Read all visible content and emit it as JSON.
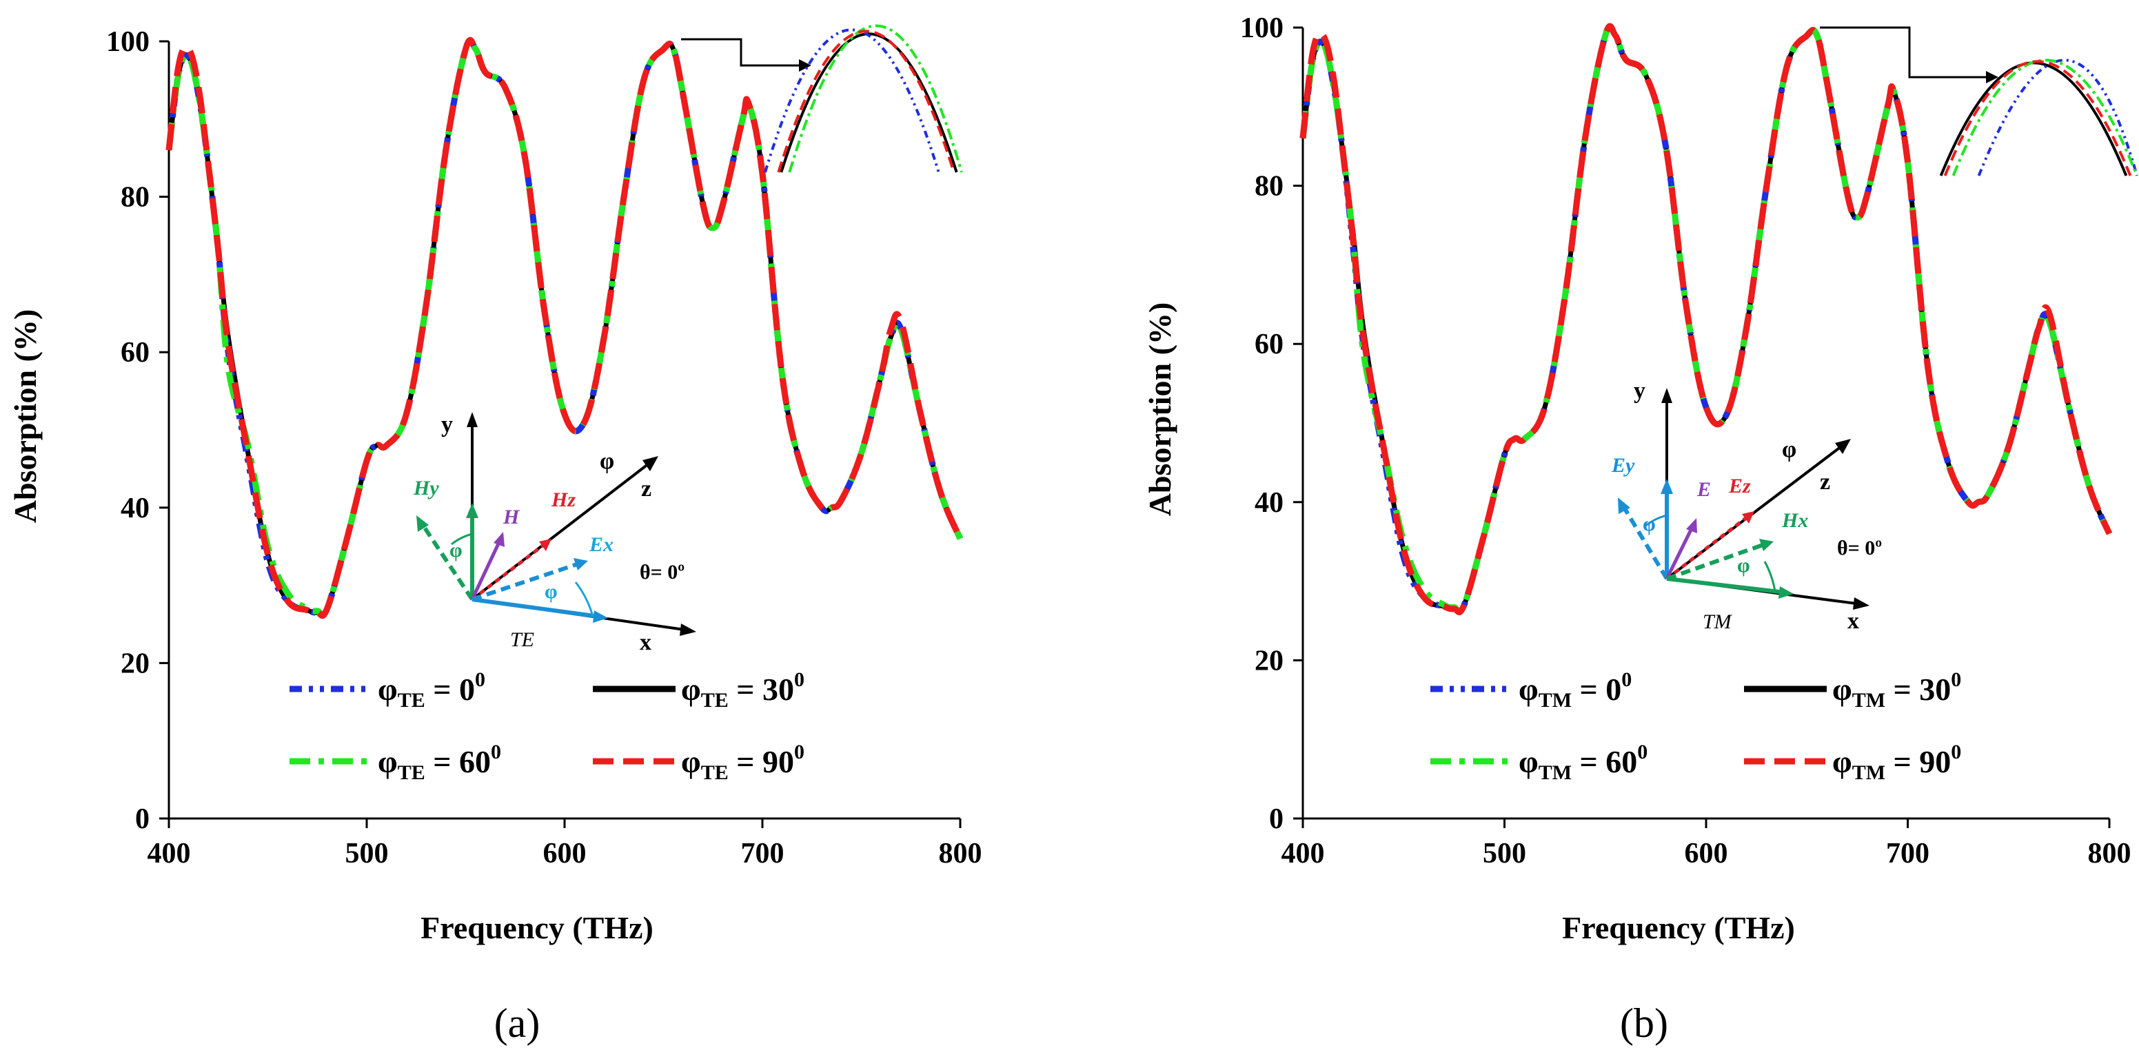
{
  "chart_data": [
    {
      "type": "line",
      "panel_label": "(a)",
      "xlabel": "Frequency (THz)",
      "ylabel": "Absorption (%)",
      "xlim": [
        400,
        800
      ],
      "ylim": [
        0,
        100
      ],
      "xticks": [
        "400",
        "500",
        "600",
        "700",
        "800"
      ],
      "yticks": [
        "0",
        "20",
        "40",
        "60",
        "80",
        "100"
      ],
      "legend": [
        {
          "prefix": "φ",
          "sub": "TE",
          "eq": " = 0",
          "sup": "0",
          "color": "#1f2ee0",
          "dash": "dashdotdot"
        },
        {
          "prefix": "φ",
          "sub": "TE",
          "eq": " = 30",
          "sup": "0",
          "color": "#000000",
          "dash": "solid"
        },
        {
          "prefix": "φ",
          "sub": "TE",
          "eq": " = 60",
          "sup": "0",
          "color": "#22e622",
          "dash": "dashdot"
        },
        {
          "prefix": "φ",
          "sub": "TE",
          "eq": " = 90",
          "sup": "0",
          "color": "#ee1c1c",
          "dash": "dash"
        }
      ],
      "x": [
        400,
        405,
        410,
        415,
        420,
        425,
        430,
        440,
        450,
        460,
        470,
        475,
        480,
        490,
        500,
        505,
        510,
        520,
        530,
        540,
        550,
        555,
        560,
        570,
        580,
        590,
        600,
        610,
        620,
        630,
        640,
        650,
        655,
        660,
        670,
        675,
        680,
        690,
        693,
        700,
        710,
        720,
        730,
        735,
        740,
        750,
        760,
        765,
        770,
        780,
        790,
        800
      ],
      "series": [
        {
          "name": "φTE = 0°",
          "values": [
            86,
            96,
            98,
            93,
            84,
            73,
            60,
            46,
            33,
            28,
            26.8,
            26.5,
            27,
            36,
            46,
            48,
            48,
            52,
            66,
            86,
            99,
            99,
            96,
            94,
            85,
            65,
            52,
            51,
            62,
            80,
            95,
            99,
            99,
            93,
            79,
            76,
            79,
            90,
            92,
            83,
            57,
            45,
            40,
            40,
            41,
            47,
            57,
            62,
            63,
            52,
            42,
            36
          ]
        },
        {
          "name": "φTE = 30°",
          "values": [
            86,
            96,
            98,
            93,
            84,
            73,
            62,
            47,
            34,
            28,
            26.8,
            26.5,
            27,
            36,
            46,
            48,
            48,
            52,
            66,
            86,
            99,
            99,
            96,
            94,
            85,
            65,
            52,
            51,
            62,
            80,
            95,
            99,
            99,
            93,
            79,
            76,
            79,
            90,
            92,
            83,
            57,
            45,
            40,
            40,
            41,
            47,
            57,
            62,
            63,
            52,
            42,
            36
          ]
        },
        {
          "name": "φTE = 60°",
          "values": [
            86,
            96,
            98,
            93,
            84,
            73,
            58,
            48,
            35,
            29,
            27,
            26.7,
            27,
            36,
            46,
            48,
            48,
            52,
            66,
            86,
            99,
            99,
            96,
            94,
            85,
            65,
            52,
            51,
            62,
            80,
            95,
            99,
            99,
            93,
            79,
            76,
            79,
            90,
            92,
            83,
            57,
            45,
            40,
            40,
            41,
            47,
            57,
            62,
            63,
            52,
            42,
            36
          ]
        },
        {
          "name": "φTE = 90°",
          "values": [
            86,
            97,
            99,
            94,
            84,
            73,
            61,
            47,
            34,
            28,
            26.8,
            26.5,
            27,
            36,
            46,
            48,
            48,
            52,
            66,
            86,
            99,
            99,
            96,
            94,
            85,
            65,
            52,
            51,
            62,
            80,
            95,
            99,
            99,
            93,
            79,
            76,
            79,
            90,
            92,
            83,
            57,
            45,
            40,
            40,
            41,
            47,
            57,
            63,
            64,
            52,
            42,
            36
          ]
        }
      ],
      "inset": {
        "y": "y",
        "x": "x",
        "z": "z",
        "phi": "φ",
        "theta": "θ= 0º",
        "mode": "TE",
        "field_h": "Hy",
        "field_h2": "H",
        "field_hz": "Hz",
        "field_e": "Ex",
        "angle": "φ"
      }
    },
    {
      "type": "line",
      "panel_label": "(b)",
      "xlabel": "Frequency (THz)",
      "ylabel": "Absorption (%)",
      "xlim": [
        400,
        800
      ],
      "ylim": [
        0,
        100
      ],
      "xticks": [
        "400",
        "500",
        "600",
        "700",
        "800"
      ],
      "yticks": [
        "0",
        "20",
        "40",
        "60",
        "80",
        "100"
      ],
      "legend": [
        {
          "prefix": "φ",
          "sub": "TM",
          "eq": " = 0",
          "sup": "0",
          "color": "#1f2ee0",
          "dash": "dashdotdot"
        },
        {
          "prefix": "φ",
          "sub": "TM",
          "eq": " = 30",
          "sup": "0",
          "color": "#000000",
          "dash": "solid"
        },
        {
          "prefix": "φ",
          "sub": "TM",
          "eq": " = 60",
          "sup": "0",
          "color": "#22e622",
          "dash": "dashdot"
        },
        {
          "prefix": "φ",
          "sub": "TM",
          "eq": " = 90",
          "sup": "0",
          "color": "#ee1c1c",
          "dash": "dash"
        }
      ],
      "x": [
        400,
        405,
        410,
        415,
        420,
        425,
        430,
        440,
        450,
        460,
        470,
        475,
        480,
        490,
        500,
        505,
        510,
        520,
        530,
        540,
        550,
        555,
        560,
        570,
        580,
        590,
        600,
        610,
        620,
        630,
        640,
        650,
        655,
        660,
        670,
        675,
        680,
        690,
        693,
        700,
        710,
        720,
        730,
        735,
        740,
        750,
        760,
        765,
        770,
        780,
        790,
        800
      ],
      "series": [
        {
          "name": "φTM = 0°",
          "values": [
            86,
            96,
            98,
            93,
            84,
            72,
            60,
            46,
            33,
            28,
            26.8,
            26.5,
            27,
            36,
            46,
            48,
            48,
            52,
            66,
            86,
            99,
            99,
            96,
            94,
            85,
            65,
            52,
            51,
            62,
            80,
            95,
            99,
            99,
            93,
            79,
            76,
            79,
            90,
            92,
            83,
            57,
            45,
            40,
            40,
            41,
            47,
            57,
            62,
            63,
            52,
            42,
            36
          ]
        },
        {
          "name": "φTM = 30°",
          "values": [
            86,
            96,
            98,
            93,
            84,
            74,
            62,
            47,
            34,
            28,
            26.8,
            26.5,
            27,
            36,
            46,
            48,
            48,
            52,
            66,
            86,
            99,
            99,
            96,
            94,
            85,
            65,
            52,
            51,
            62,
            80,
            95,
            99,
            99,
            93,
            79,
            76,
            79,
            90,
            92,
            83,
            57,
            45,
            40,
            40,
            41,
            47,
            57,
            62,
            63,
            52,
            42,
            36
          ]
        },
        {
          "name": "φTM = 60°",
          "values": [
            86,
            96,
            98,
            93,
            84,
            73,
            59,
            47,
            35,
            29,
            27,
            26.7,
            27,
            36,
            46,
            48,
            48,
            52,
            66,
            86,
            99,
            99,
            96,
            94,
            85,
            65,
            52,
            51,
            62,
            80,
            95,
            99,
            99,
            93,
            79,
            76,
            79,
            90,
            92,
            83,
            57,
            45,
            40,
            40,
            41,
            47,
            57,
            62,
            63,
            52,
            42,
            36
          ]
        },
        {
          "name": "φTM = 90°",
          "values": [
            86,
            97,
            99,
            94,
            84,
            73,
            61,
            47,
            34,
            28,
            26.8,
            26.5,
            27,
            36,
            46,
            48,
            48,
            52,
            66,
            86,
            99,
            99,
            96,
            94,
            85,
            65,
            52,
            51,
            62,
            80,
            95,
            99,
            99,
            93,
            79,
            76,
            79,
            90,
            92,
            83,
            57,
            45,
            40,
            40,
            41,
            47,
            57,
            62,
            64,
            52,
            42,
            36
          ]
        }
      ],
      "inset": {
        "y": "y",
        "x": "x",
        "z": "z",
        "phi": "φ",
        "theta": "θ= 0º",
        "mode": "TM",
        "field_e": "Ey",
        "field_e2": "E",
        "field_ez": "Ez",
        "field_h": "Hx",
        "angle": "φ"
      }
    }
  ],
  "colors": {
    "blue": "#1f2ee0",
    "black": "#000000",
    "green": "#22e622",
    "red": "#ee1c1c",
    "inset_green": "#16a05a",
    "inset_purple": "#8a3fb8",
    "inset_red": "#e0202c",
    "inset_blue": "#1a8fd6",
    "inset_cyan": "#18a6d8"
  }
}
